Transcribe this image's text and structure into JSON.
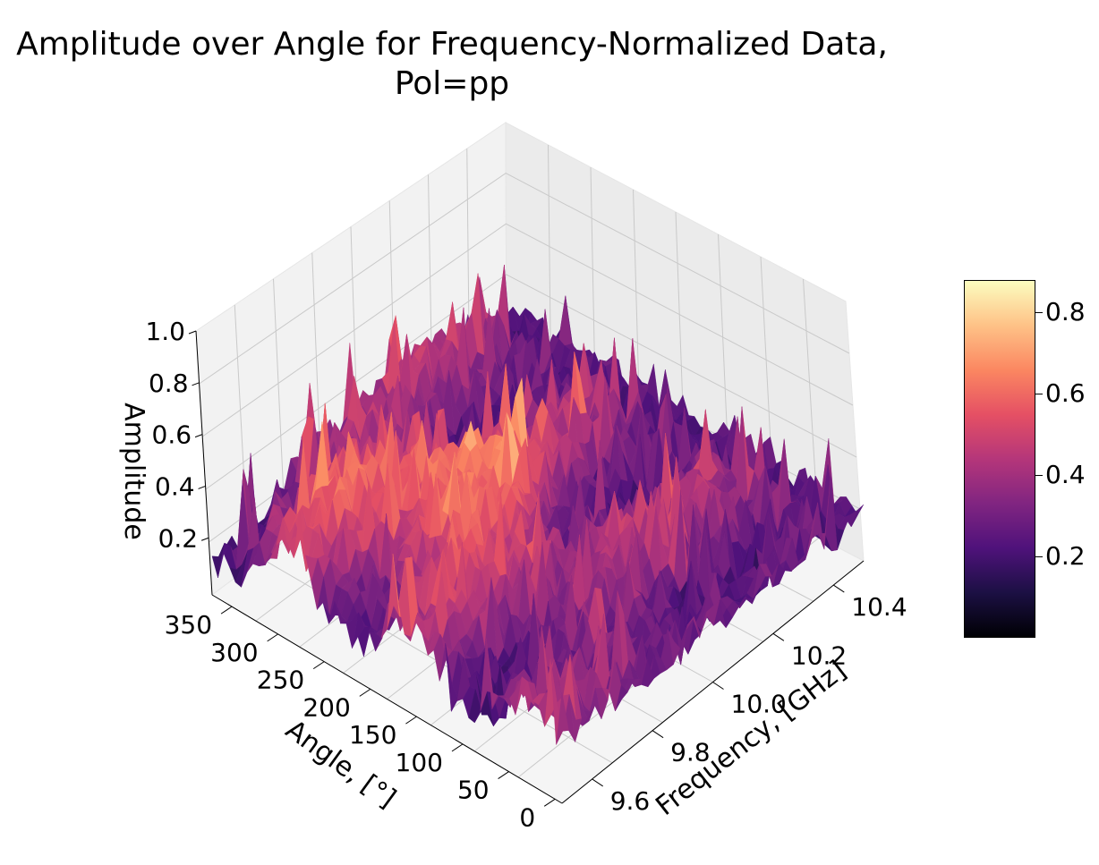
{
  "chart_data": {
    "type": "surface3d",
    "title": "Amplitude over Angle for Frequency-Normalized Data, Pol=pp",
    "title_lines": [
      "Amplitude over Angle for Frequency-Normalized Data,",
      "Pol=pp"
    ],
    "xlabel": "Frequency, [GHz]",
    "ylabel": "Angle, [°]",
    "zlabel": "Amplitude",
    "x_ticks": [
      "9.6",
      "9.8",
      "10.0",
      "10.2",
      "10.4"
    ],
    "y_ticks": [
      "0",
      "50",
      "100",
      "150",
      "200",
      "250",
      "300",
      "350"
    ],
    "z_ticks": [
      "0.2",
      "0.4",
      "0.6",
      "0.8",
      "1.0"
    ],
    "xlim": [
      9.5,
      10.5
    ],
    "ylim": [
      0,
      360
    ],
    "zlim": [
      0.0,
      1.0
    ],
    "colormap": "magma",
    "colorbar_ticks": [
      "0.2",
      "0.4",
      "0.6",
      "0.8"
    ],
    "colorbar_range": [
      0.0,
      0.88
    ],
    "grid": true
  }
}
